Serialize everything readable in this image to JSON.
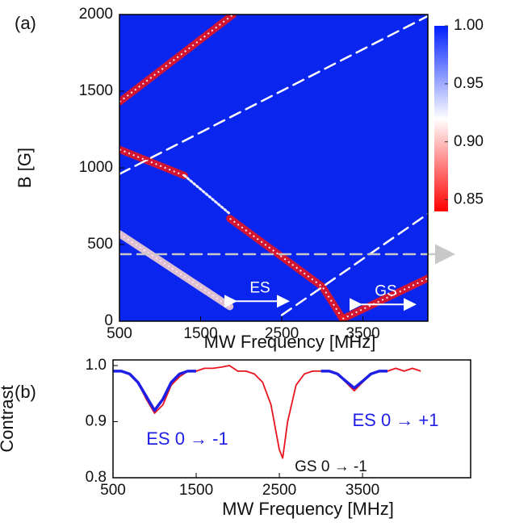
{
  "chart_data": [
    {
      "type": "heatmap",
      "panel_label": "(a)",
      "xlabel": "MW Frequency [MHz]",
      "ylabel": "B [G]",
      "xlim": [
        500,
        4300
      ],
      "ylim": [
        0,
        2000
      ],
      "xticks": [
        500,
        1500,
        2500,
        3500
      ],
      "yticks": [
        0,
        500,
        1000,
        1500,
        2000
      ],
      "background": "#0a26ee",
      "colorbar": {
        "clim": [
          0.84,
          1.0
        ],
        "ticks": [
          0.85,
          {
            "value": 0.9,
            "label": "0.90"
          },
          0.95,
          {
            "value": 1.0,
            "label": "1.00"
          }
        ],
        "stops": [
          {
            "value": 0.84,
            "color": "#ff0000"
          },
          {
            "value": 0.92,
            "color": "#ffffff"
          },
          {
            "value": 1.0,
            "color": "#0020ff"
          }
        ]
      },
      "series": [
        {
          "color": "#e8141e",
          "style": "solid",
          "x": [
            500,
            1900
          ],
          "y": [
            1430,
            2000
          ]
        },
        {
          "color": "#e8141e",
          "style": "solid",
          "x": [
            500,
            1300
          ],
          "y": [
            1120,
            950
          ]
        },
        {
          "color": "#f0f0ff",
          "style": "dotted",
          "x": [
            1300,
            1860
          ],
          "y": [
            950,
            700
          ]
        },
        {
          "color": "#e8141e",
          "style": "solid",
          "x": [
            1860,
            3000,
            3250
          ],
          "y": [
            670,
            225,
            15
          ]
        },
        {
          "color": "#e8141e",
          "style": "solid",
          "x": [
            3250,
            4300
          ],
          "y": [
            15,
            280
          ]
        },
        {
          "color": "#f4d0d0",
          "style": "solid",
          "x": [
            500,
            1860
          ],
          "y": [
            570,
            95
          ]
        },
        {
          "color": "#ffffff",
          "style": "dashed",
          "x": [
            500,
            4300
          ],
          "y": [
            960,
            1990
          ]
        },
        {
          "color": "#ffffff",
          "style": "dashed",
          "x": [
            2500,
            4300
          ],
          "y": [
            40,
            700
          ]
        },
        {
          "color": "#c8c8c8",
          "style": "dashed",
          "x": [
            500,
            4300
          ],
          "y": [
            437,
            437
          ]
        }
      ],
      "annotations": [
        "ES",
        "GS"
      ]
    },
    {
      "type": "line",
      "panel_label": "(b)",
      "xlabel": "MW Frequency [MHz]",
      "ylabel": "Contrast",
      "xlim": [
        500,
        4800
      ],
      "ylim": [
        0.8,
        1.01
      ],
      "xticks": [
        500,
        1500,
        2500,
        3500
      ],
      "yticks": [
        0.8,
        0.9,
        {
          "value": 1.0,
          "label": "1.0"
        }
      ],
      "series": [
        {
          "color": "#e8141e",
          "x": [
            500,
            600,
            700,
            800,
            900,
            1000,
            1100,
            1200,
            1300,
            1400,
            1500,
            1600,
            1700,
            1800,
            1900,
            2000,
            2100,
            2200,
            2300,
            2400,
            2500,
            2540,
            2600,
            2700,
            2800,
            2900,
            3000,
            3100,
            3200,
            3300,
            3400,
            3500,
            3600,
            3700,
            3800,
            3900,
            4000,
            4100,
            4200
          ],
          "values": [
            0.99,
            0.99,
            0.985,
            0.97,
            0.94,
            0.915,
            0.93,
            0.965,
            0.98,
            0.99,
            0.99,
            0.995,
            0.995,
            0.997,
            1.0,
            0.99,
            0.99,
            0.985,
            0.97,
            0.93,
            0.85,
            0.835,
            0.9,
            0.965,
            0.985,
            0.99,
            0.99,
            0.99,
            0.985,
            0.97,
            0.955,
            0.97,
            0.985,
            0.99,
            0.99,
            0.995,
            0.99,
            0.995,
            0.99
          ]
        },
        {
          "color": "#1e1ee6",
          "x": [
            500,
            600,
            700,
            800,
            900,
            1000,
            1100,
            1200,
            1300,
            1400,
            1500
          ],
          "values": [
            0.99,
            0.99,
            0.985,
            0.97,
            0.945,
            0.92,
            0.94,
            0.97,
            0.985,
            0.99,
            0.99
          ]
        },
        {
          "color": "#1e1ee6",
          "x": [
            3000,
            3100,
            3200,
            3300,
            3400,
            3500,
            3600,
            3700,
            3800
          ],
          "values": [
            0.99,
            0.99,
            0.985,
            0.972,
            0.96,
            0.972,
            0.985,
            0.99,
            0.99
          ]
        }
      ],
      "annotations": [
        "ES 0 → -1",
        "ES 0 → +1",
        "GS 0 → -1"
      ]
    }
  ]
}
